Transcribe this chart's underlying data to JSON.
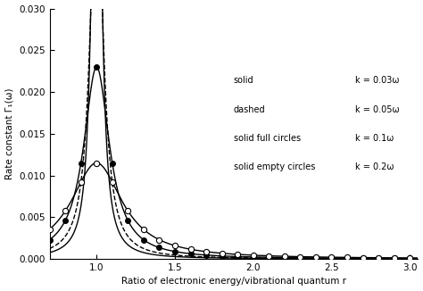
{
  "title": "",
  "xlabel": "Ratio of electronic energy/vibrational quantum r",
  "ylabel": "Rate constant Γ₁(ω)",
  "xlim": [
    0.7,
    3.05
  ],
  "ylim": [
    0.0,
    0.03
  ],
  "yticks": [
    0.0,
    0.005,
    0.01,
    0.015,
    0.02,
    0.025,
    0.03
  ],
  "xticks": [
    1.0,
    1.5,
    2.0,
    2.5,
    3.0
  ],
  "k_values": [
    0.03,
    0.05,
    0.1,
    0.2
  ],
  "line_styles": [
    "solid",
    "dashed",
    "solid",
    "solid"
  ],
  "markers": [
    null,
    null,
    "filled_circle",
    "open_circle"
  ],
  "C": 0.0023,
  "figsize": [
    4.74,
    3.26
  ],
  "dpi": 100
}
